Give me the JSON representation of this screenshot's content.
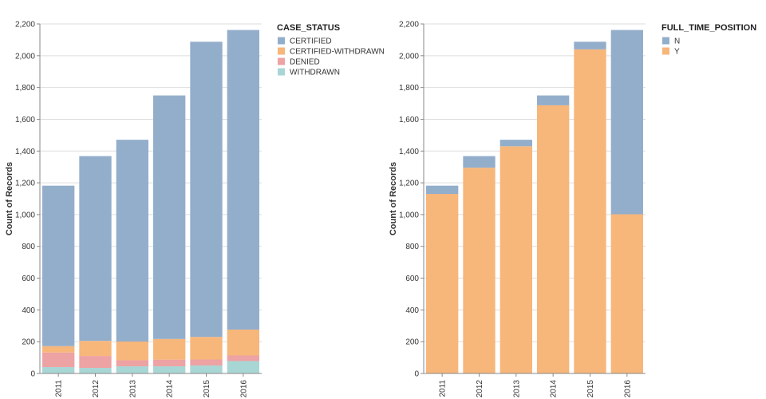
{
  "chart_data": [
    {
      "type": "bar",
      "stacked": true,
      "categories": [
        "2011",
        "2012",
        "2013",
        "2014",
        "2015",
        "2016"
      ],
      "xlabel": "",
      "ylabel": "Count of Records",
      "ylim": [
        0,
        2200
      ],
      "yticks": [
        "0",
        "200",
        "400",
        "600",
        "800",
        "1,000",
        "1,200",
        "1,400",
        "1,600",
        "1,800",
        "2,000",
        "2,200"
      ],
      "grid": true,
      "legend_title": "CASE_STATUS",
      "legend_position": "right",
      "series": [
        {
          "name": "WITHDRAWN",
          "color": "#a8d6d5",
          "values": [
            40,
            35,
            45,
            45,
            50,
            78
          ]
        },
        {
          "name": "DENIED",
          "color": "#eda2a4",
          "values": [
            92,
            75,
            38,
            42,
            38,
            35
          ]
        },
        {
          "name": "CERTIFIED-WITHDRAWN",
          "color": "#f7b67a",
          "values": [
            40,
            95,
            118,
            130,
            142,
            163
          ]
        },
        {
          "name": "CERTIFIED",
          "color": "#93aecb",
          "values": [
            1010,
            1163,
            1270,
            1533,
            1858,
            1886
          ]
        }
      ],
      "legend_order": [
        "CERTIFIED",
        "CERTIFIED-WITHDRAWN",
        "DENIED",
        "WITHDRAWN"
      ]
    },
    {
      "type": "bar",
      "stacked": true,
      "categories": [
        "2011",
        "2012",
        "2013",
        "2014",
        "2015",
        "2016"
      ],
      "xlabel": "",
      "ylabel": "Count of Records",
      "ylim": [
        0,
        2200
      ],
      "yticks": [
        "0",
        "200",
        "400",
        "600",
        "800",
        "1,000",
        "1,200",
        "1,400",
        "1,600",
        "1,800",
        "2,000",
        "2,200"
      ],
      "grid": true,
      "legend_title": "FULL_TIME_POSITION",
      "legend_position": "right",
      "series": [
        {
          "name": "Y",
          "color": "#f7b67a",
          "values": [
            1130,
            1295,
            1430,
            1688,
            2040,
            1002
          ]
        },
        {
          "name": "N",
          "color": "#93aecb",
          "values": [
            52,
            73,
            41,
            62,
            48,
            1160
          ]
        }
      ],
      "legend_order": [
        "N",
        "Y"
      ]
    }
  ]
}
